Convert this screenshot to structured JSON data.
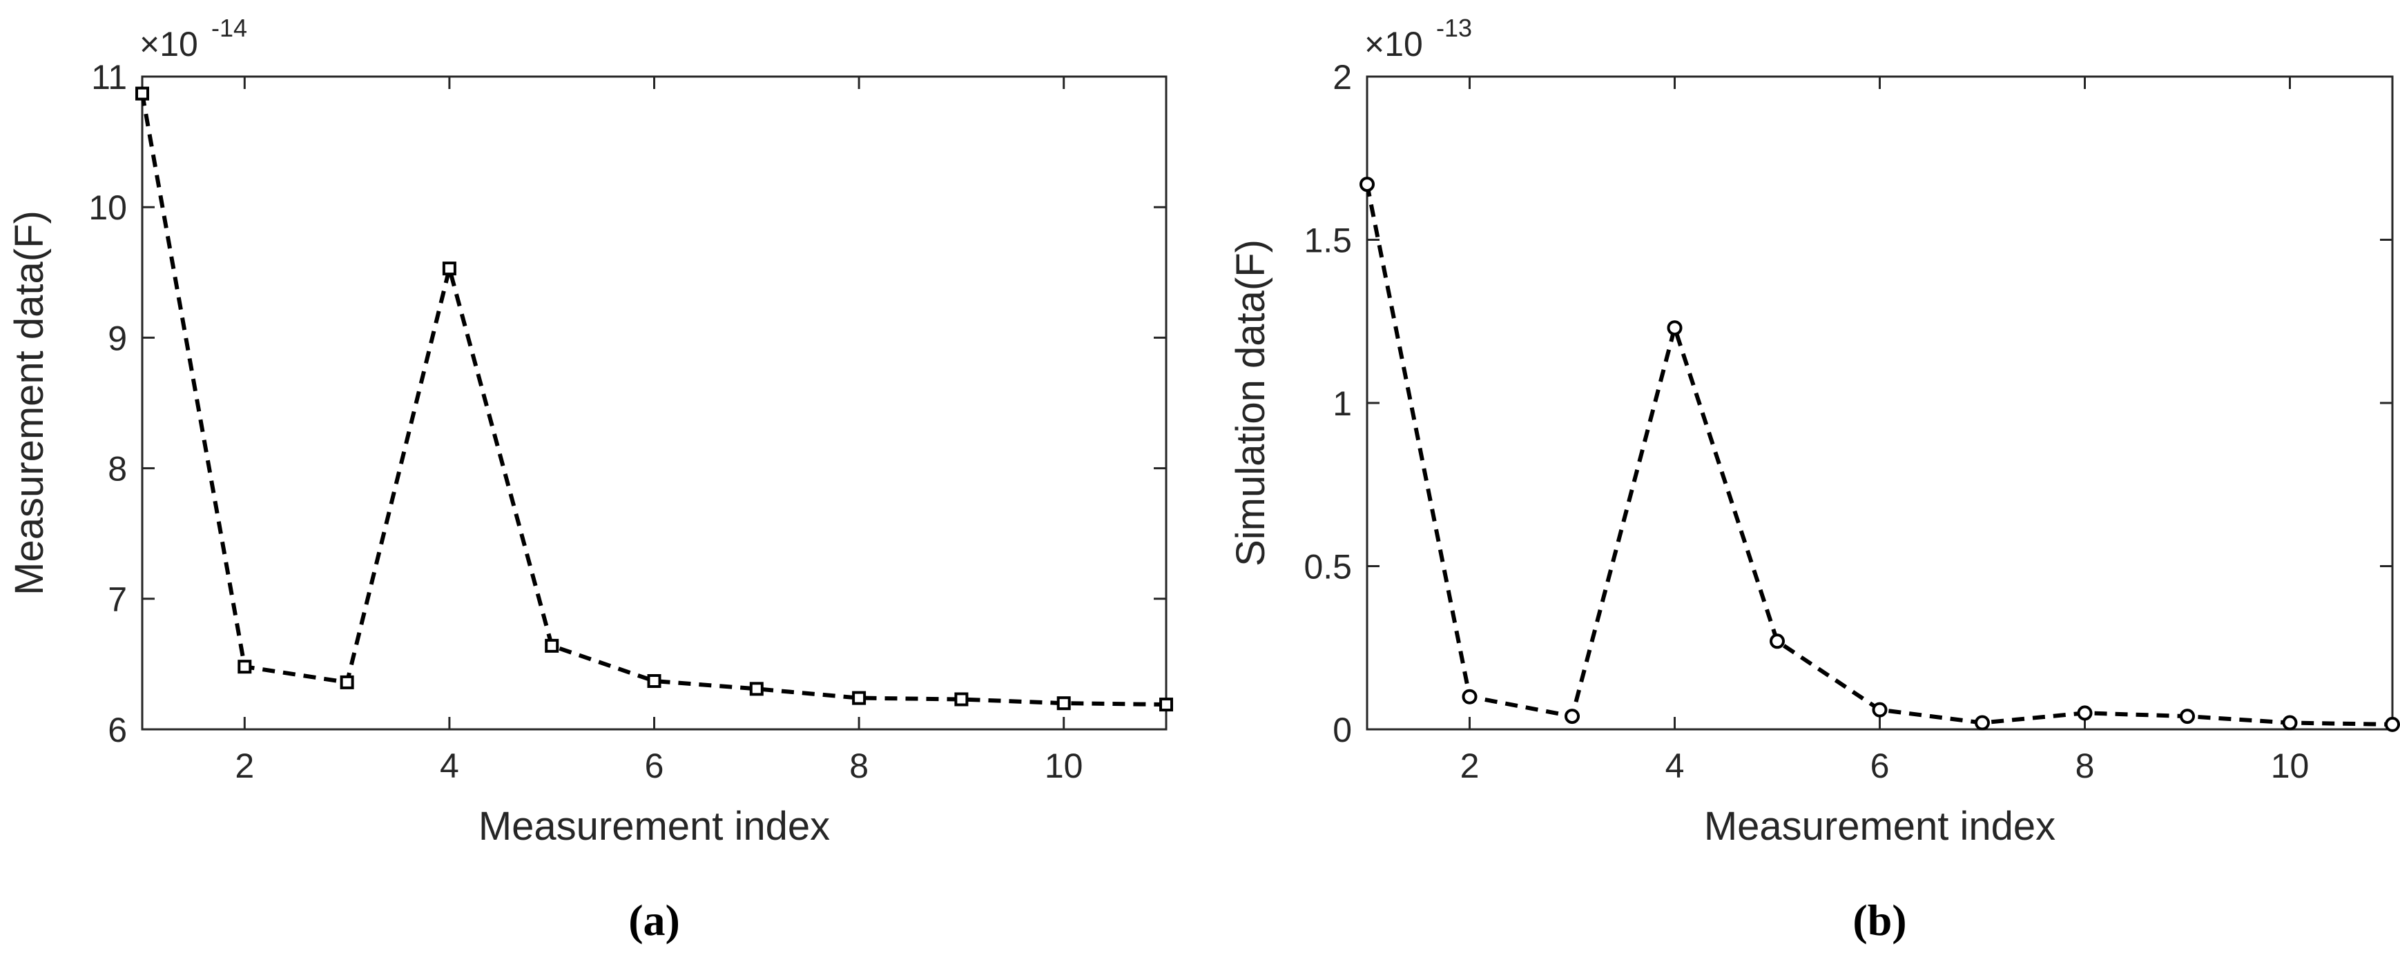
{
  "chart_data": [
    {
      "type": "line",
      "caption": "(a)",
      "xlabel": "Measurement index",
      "ylabel": "Measurement data(F)",
      "y_scale_base": "×10",
      "y_scale_exponent": "-14",
      "x": [
        1,
        2,
        3,
        4,
        5,
        6,
        7,
        8,
        9,
        10,
        11
      ],
      "series": [
        {
          "color": "#000000",
          "marker": "square",
          "values": [
            10.87,
            6.48,
            6.36,
            9.53,
            6.64,
            6.37,
            6.31,
            6.24,
            6.23,
            6.2,
            6.19
          ]
        }
      ],
      "xlim": [
        1,
        11
      ],
      "xticks": [
        2,
        4,
        6,
        8,
        10
      ],
      "ylim": [
        6,
        11
      ],
      "yticks": [
        6,
        7,
        8,
        9,
        10,
        11
      ]
    },
    {
      "type": "line",
      "caption": "(b)",
      "xlabel": "Measurement index",
      "ylabel": "Simulation data(F)",
      "y_scale_base": "×10",
      "y_scale_exponent": "-13",
      "x": [
        1,
        2,
        3,
        4,
        5,
        6,
        7,
        8,
        9,
        10,
        11
      ],
      "series": [
        {
          "color": "#000000",
          "marker": "circle",
          "values": [
            1.67,
            0.1,
            0.04,
            1.23,
            0.27,
            0.06,
            0.02,
            0.05,
            0.04,
            0.02,
            0.015
          ]
        }
      ],
      "xlim": [
        1,
        11
      ],
      "xticks": [
        2,
        4,
        6,
        8,
        10
      ],
      "ylim": [
        0,
        2
      ],
      "yticks": [
        0,
        0.5,
        1,
        1.5,
        2
      ]
    }
  ]
}
